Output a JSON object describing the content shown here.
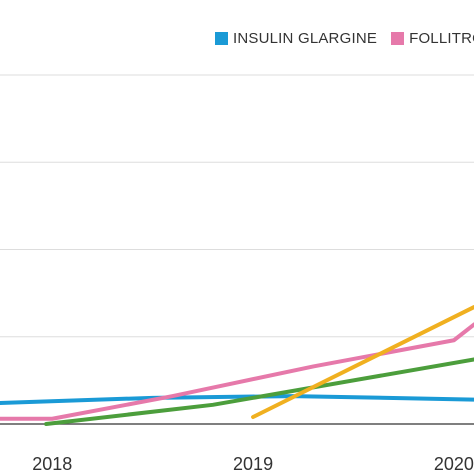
{
  "chart_data": {
    "type": "line",
    "x_ticks": [
      "2018",
      "2019",
      "2020"
    ],
    "xlim": [
      2017.74,
      2020.1
    ],
    "ylim": [
      0,
      4
    ],
    "y_gridlines": [
      0,
      1,
      2,
      3,
      4
    ],
    "grid": "horizontal",
    "legend_position": "top",
    "series": [
      {
        "name": "INSULIN GLARGINE",
        "color": "#1a9ad6",
        "points": [
          [
            2017.74,
            0.24
          ],
          [
            2018.5,
            0.3
          ],
          [
            2019.2,
            0.32
          ],
          [
            2020.1,
            0.28
          ]
        ]
      },
      {
        "name": "FOLLITRO",
        "color": "#e679aa",
        "points": [
          [
            2017.74,
            0.06
          ],
          [
            2018.0,
            0.06
          ],
          [
            2018.6,
            0.32
          ],
          [
            2019.3,
            0.66
          ],
          [
            2020.0,
            0.96
          ],
          [
            2020.1,
            1.14
          ]
        ]
      },
      {
        "color": "#4c9e3c",
        "points": [
          [
            2017.97,
            0.0
          ],
          [
            2018.8,
            0.22
          ],
          [
            2020.1,
            0.74
          ]
        ]
      },
      {
        "color": "#f0b020",
        "points": [
          [
            2019.0,
            0.08
          ],
          [
            2020.1,
            1.34
          ]
        ]
      }
    ]
  }
}
